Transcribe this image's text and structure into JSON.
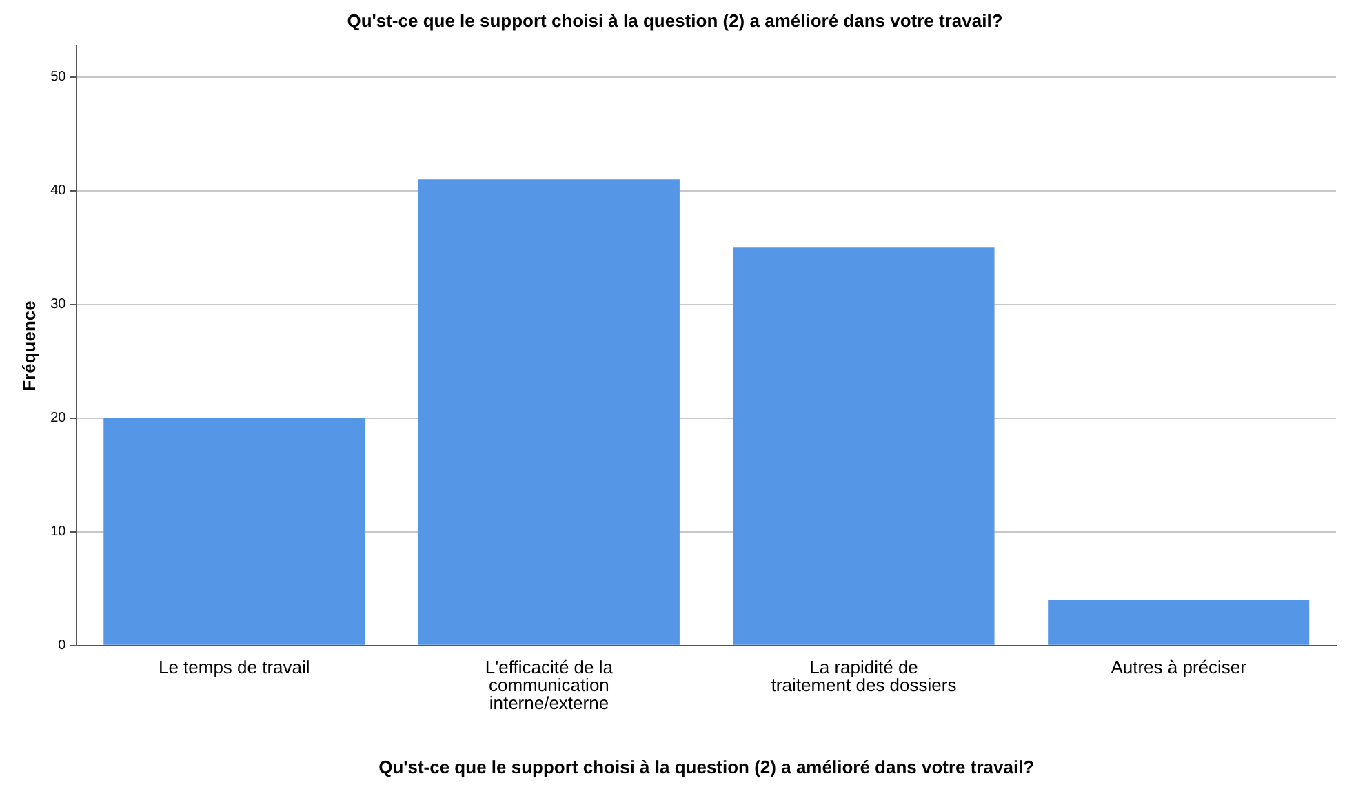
{
  "chart_data": {
    "type": "bar",
    "title": "Qu'st-ce que le support choisi à la question (2) a amélioré dans votre travail?",
    "xlabel": "Qu'st-ce que le support choisi à la question (2) a amélioré dans votre travail?",
    "ylabel": "Fréquence",
    "categories": [
      "Le temps de travail",
      "L'efficacité de la communication interne/externe",
      "La rapidité de traitement des dossiers",
      "Autres à préciser"
    ],
    "values": [
      20,
      41,
      35,
      4
    ],
    "color": "#5596e6",
    "ylim": [
      0,
      52.7
    ],
    "yticks": [
      0,
      10,
      20,
      30,
      40,
      50
    ],
    "grid": "y",
    "legend": false
  }
}
